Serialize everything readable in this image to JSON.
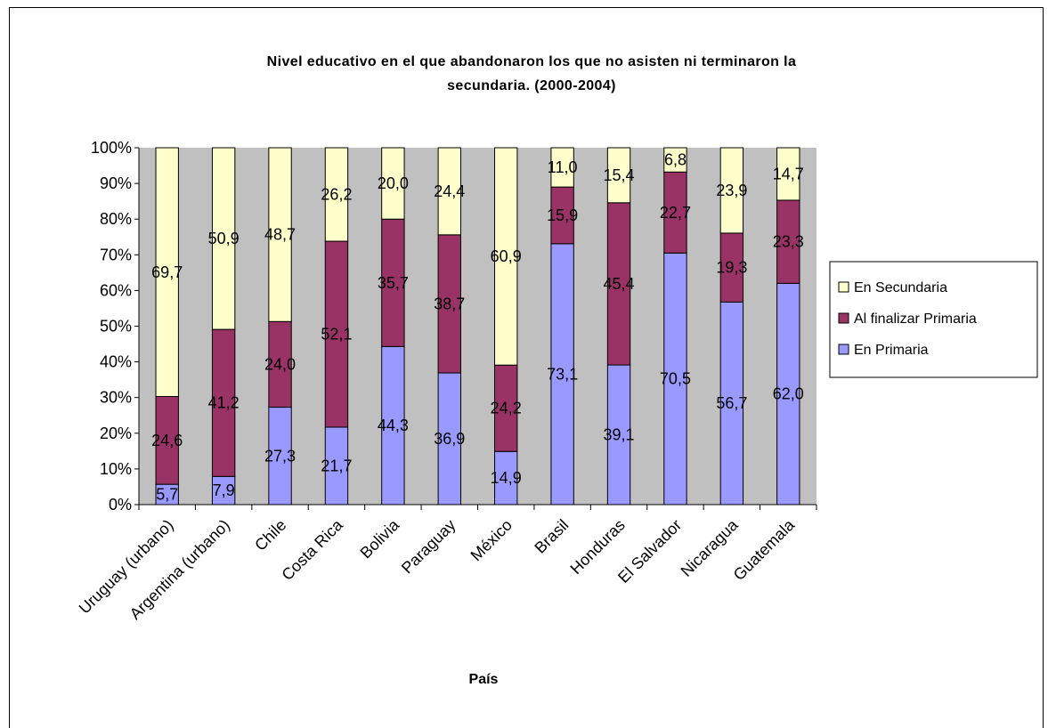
{
  "chart_data": {
    "type": "bar",
    "stacked": "percent",
    "title_line1": "Nivel educativo en el que abandonaron los que no asisten ni terminaron la",
    "title_line2": "secundaria. (2000-2004)",
    "xlabel": "País",
    "ylabel": "",
    "ylim": [
      0,
      100
    ],
    "yticks": [
      "0%",
      "10%",
      "20%",
      "30%",
      "40%",
      "50%",
      "60%",
      "70%",
      "80%",
      "90%",
      "100%"
    ],
    "grid": false,
    "plot_background": "#c0c0c0",
    "legend_position": "right",
    "categories": [
      "Uruguay (urbano)",
      "Argentina (urbano)",
      "Chile",
      "Costa Rica",
      "Bolivia",
      "Paraguay",
      "México",
      "Brasil",
      "Honduras",
      "El Salvador",
      "Nicaragua",
      "Guatemala"
    ],
    "series": [
      {
        "name": "En Primaria",
        "color": "#9999ff",
        "values": [
          5.7,
          7.9,
          27.3,
          21.7,
          44.3,
          36.9,
          14.9,
          73.1,
          39.1,
          70.5,
          56.7,
          62.0
        ],
        "labels": [
          "5,7",
          "7,9",
          "27,3",
          "21,7",
          "44,3",
          "36,9",
          "14,9",
          "73,1",
          "39,1",
          "70,5",
          "56,7",
          "62,0"
        ]
      },
      {
        "name": "Al finalizar Primaria",
        "color": "#993366",
        "values": [
          24.6,
          41.2,
          24.0,
          52.1,
          35.7,
          38.7,
          24.2,
          15.9,
          45.4,
          22.7,
          19.3,
          23.3
        ],
        "labels": [
          "24,6",
          "41,2",
          "24,0",
          "52,1",
          "35,7",
          "38,7",
          "24,2",
          "15,9",
          "45,4",
          "22,7",
          "19,3",
          "23,3"
        ]
      },
      {
        "name": "En Secundaria",
        "color": "#ffffcc",
        "values": [
          69.7,
          50.9,
          48.7,
          26.2,
          20.0,
          24.4,
          60.9,
          11.0,
          15.4,
          6.8,
          23.9,
          14.7
        ],
        "labels": [
          "69,7",
          "50,9",
          "48,7",
          "26,2",
          "20,0",
          "24,4",
          "60,9",
          "11,0",
          "15,4",
          "6,8",
          "23,9",
          "14,7"
        ]
      }
    ],
    "legend_order": [
      "En Secundaria",
      "Al finalizar Primaria",
      "En Primaria"
    ]
  }
}
